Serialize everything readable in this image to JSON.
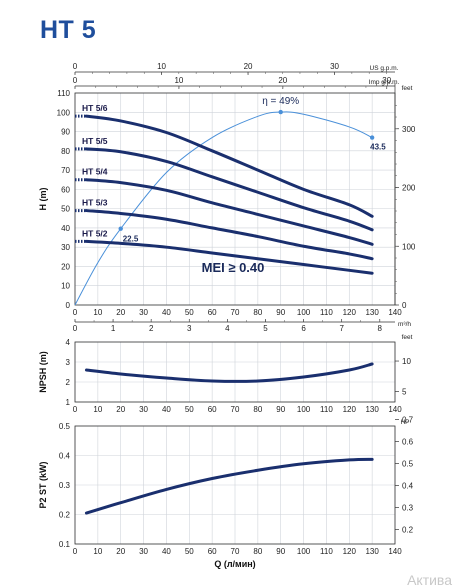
{
  "title": "HT 5",
  "watermark": "Актива",
  "colors": {
    "curve": "#1a2f6e",
    "efficiency": "#4a90d9",
    "grid": "#cfd3da",
    "title": "#1f4e9c"
  },
  "top_axes": {
    "us_gpm": {
      "unit": "US g.p.m.",
      "ticks": [
        "0",
        "10",
        "20",
        "30"
      ],
      "values": [
        0,
        10,
        20,
        30
      ]
    },
    "imp_gpm": {
      "unit": "Imp g.p.m.",
      "ticks": [
        "0",
        "10",
        "20",
        "30"
      ],
      "values": [
        0,
        10,
        20,
        30
      ]
    }
  },
  "chart_data": [
    {
      "type": "line",
      "name": "head",
      "ylabel": "H (m)",
      "y2label": "feet",
      "x": [
        5,
        20,
        40,
        60,
        80,
        100,
        120,
        130
      ],
      "xlim": [
        0,
        140
      ],
      "ylim": [
        0,
        110
      ],
      "yticks": [
        "0",
        "10",
        "20",
        "30",
        "40",
        "50",
        "60",
        "70",
        "80",
        "90",
        "100",
        "110"
      ],
      "y2ticks": [
        "0",
        "100",
        "200",
        "300"
      ],
      "y2values": [
        0,
        100,
        200,
        300
      ],
      "xticks": [
        "0",
        "10",
        "20",
        "30",
        "40",
        "50",
        "60",
        "70",
        "80",
        "90",
        "100",
        "110",
        "120",
        "130",
        "140"
      ],
      "m3h": {
        "unit": "m³/h",
        "ticks": [
          "0",
          "1",
          "2",
          "3",
          "4",
          "5",
          "6",
          "7",
          "8"
        ],
        "values": [
          0,
          1,
          2,
          3,
          4,
          5,
          6,
          7,
          8
        ]
      },
      "series": [
        {
          "name": "HT 5/6",
          "values": [
            98,
            95.5,
            89.5,
            80,
            70,
            60,
            52,
            46
          ]
        },
        {
          "name": "HT 5/5",
          "values": [
            81,
            79.5,
            74.5,
            66.5,
            58.5,
            50.5,
            43.5,
            39
          ]
        },
        {
          "name": "HT 5/4",
          "values": [
            65,
            63.5,
            59.5,
            53,
            47,
            41,
            35,
            31.5
          ]
        },
        {
          "name": "HT 5/3",
          "values": [
            49,
            47.5,
            44.5,
            40,
            35.5,
            30.5,
            26.5,
            24
          ]
        },
        {
          "name": "HT 5/2",
          "values": [
            33,
            32,
            30,
            27,
            24,
            21,
            18,
            16.5
          ]
        }
      ],
      "efficiency": {
        "x": [
          0,
          10,
          20,
          40,
          60,
          80,
          90,
          100,
          120,
          130
        ],
        "values": [
          0,
          40,
          72,
          125,
          158,
          178,
          182,
          180,
          168,
          158
        ],
        "markers": [
          {
            "x": 20,
            "y": 72,
            "label": "22.5"
          },
          {
            "x": 90,
            "y": 182,
            "label": "η = 49%"
          },
          {
            "x": 130,
            "y": 158,
            "label": "43.5"
          }
        ]
      },
      "annotation": "MEI ≥ 0.40"
    },
    {
      "type": "line",
      "name": "npsh",
      "ylabel": "NPSH (m)",
      "y2label": "feet",
      "xlim": [
        0,
        140
      ],
      "ylim": [
        1,
        4
      ],
      "yticks": [
        "1",
        "2",
        "3",
        "4"
      ],
      "y2ticks": [
        "5",
        "10"
      ],
      "y2values": [
        5,
        10
      ],
      "xticks": [
        "0",
        "10",
        "20",
        "30",
        "40",
        "50",
        "60",
        "70",
        "80",
        "90",
        "100",
        "110",
        "120",
        "130",
        "140"
      ],
      "x": [
        5,
        20,
        40,
        60,
        80,
        100,
        120,
        130
      ],
      "values": [
        2.6,
        2.4,
        2.2,
        2.05,
        2.05,
        2.25,
        2.6,
        2.9
      ]
    },
    {
      "type": "line",
      "name": "power",
      "ylabel": "P2 ST (kW)",
      "y2label": "HP",
      "xlabel": "Q (л/мин)",
      "xlim": [
        0,
        140
      ],
      "ylim": [
        0.1,
        0.5
      ],
      "yticks": [
        "0.1",
        "0.2",
        "0.3",
        "0.4",
        "0.5"
      ],
      "y2ticks": [
        "0.2",
        "0.3",
        "0.4",
        "0.5",
        "0.6",
        "0.7"
      ],
      "y2values": [
        0.2,
        0.3,
        0.4,
        0.5,
        0.6,
        0.7
      ],
      "xticks": [
        "0",
        "10",
        "20",
        "30",
        "40",
        "50",
        "60",
        "70",
        "80",
        "90",
        "100",
        "110",
        "120",
        "130",
        "140"
      ],
      "x": [
        5,
        20,
        40,
        60,
        80,
        100,
        120,
        130
      ],
      "values": [
        0.205,
        0.24,
        0.285,
        0.322,
        0.35,
        0.372,
        0.385,
        0.387
      ]
    }
  ]
}
